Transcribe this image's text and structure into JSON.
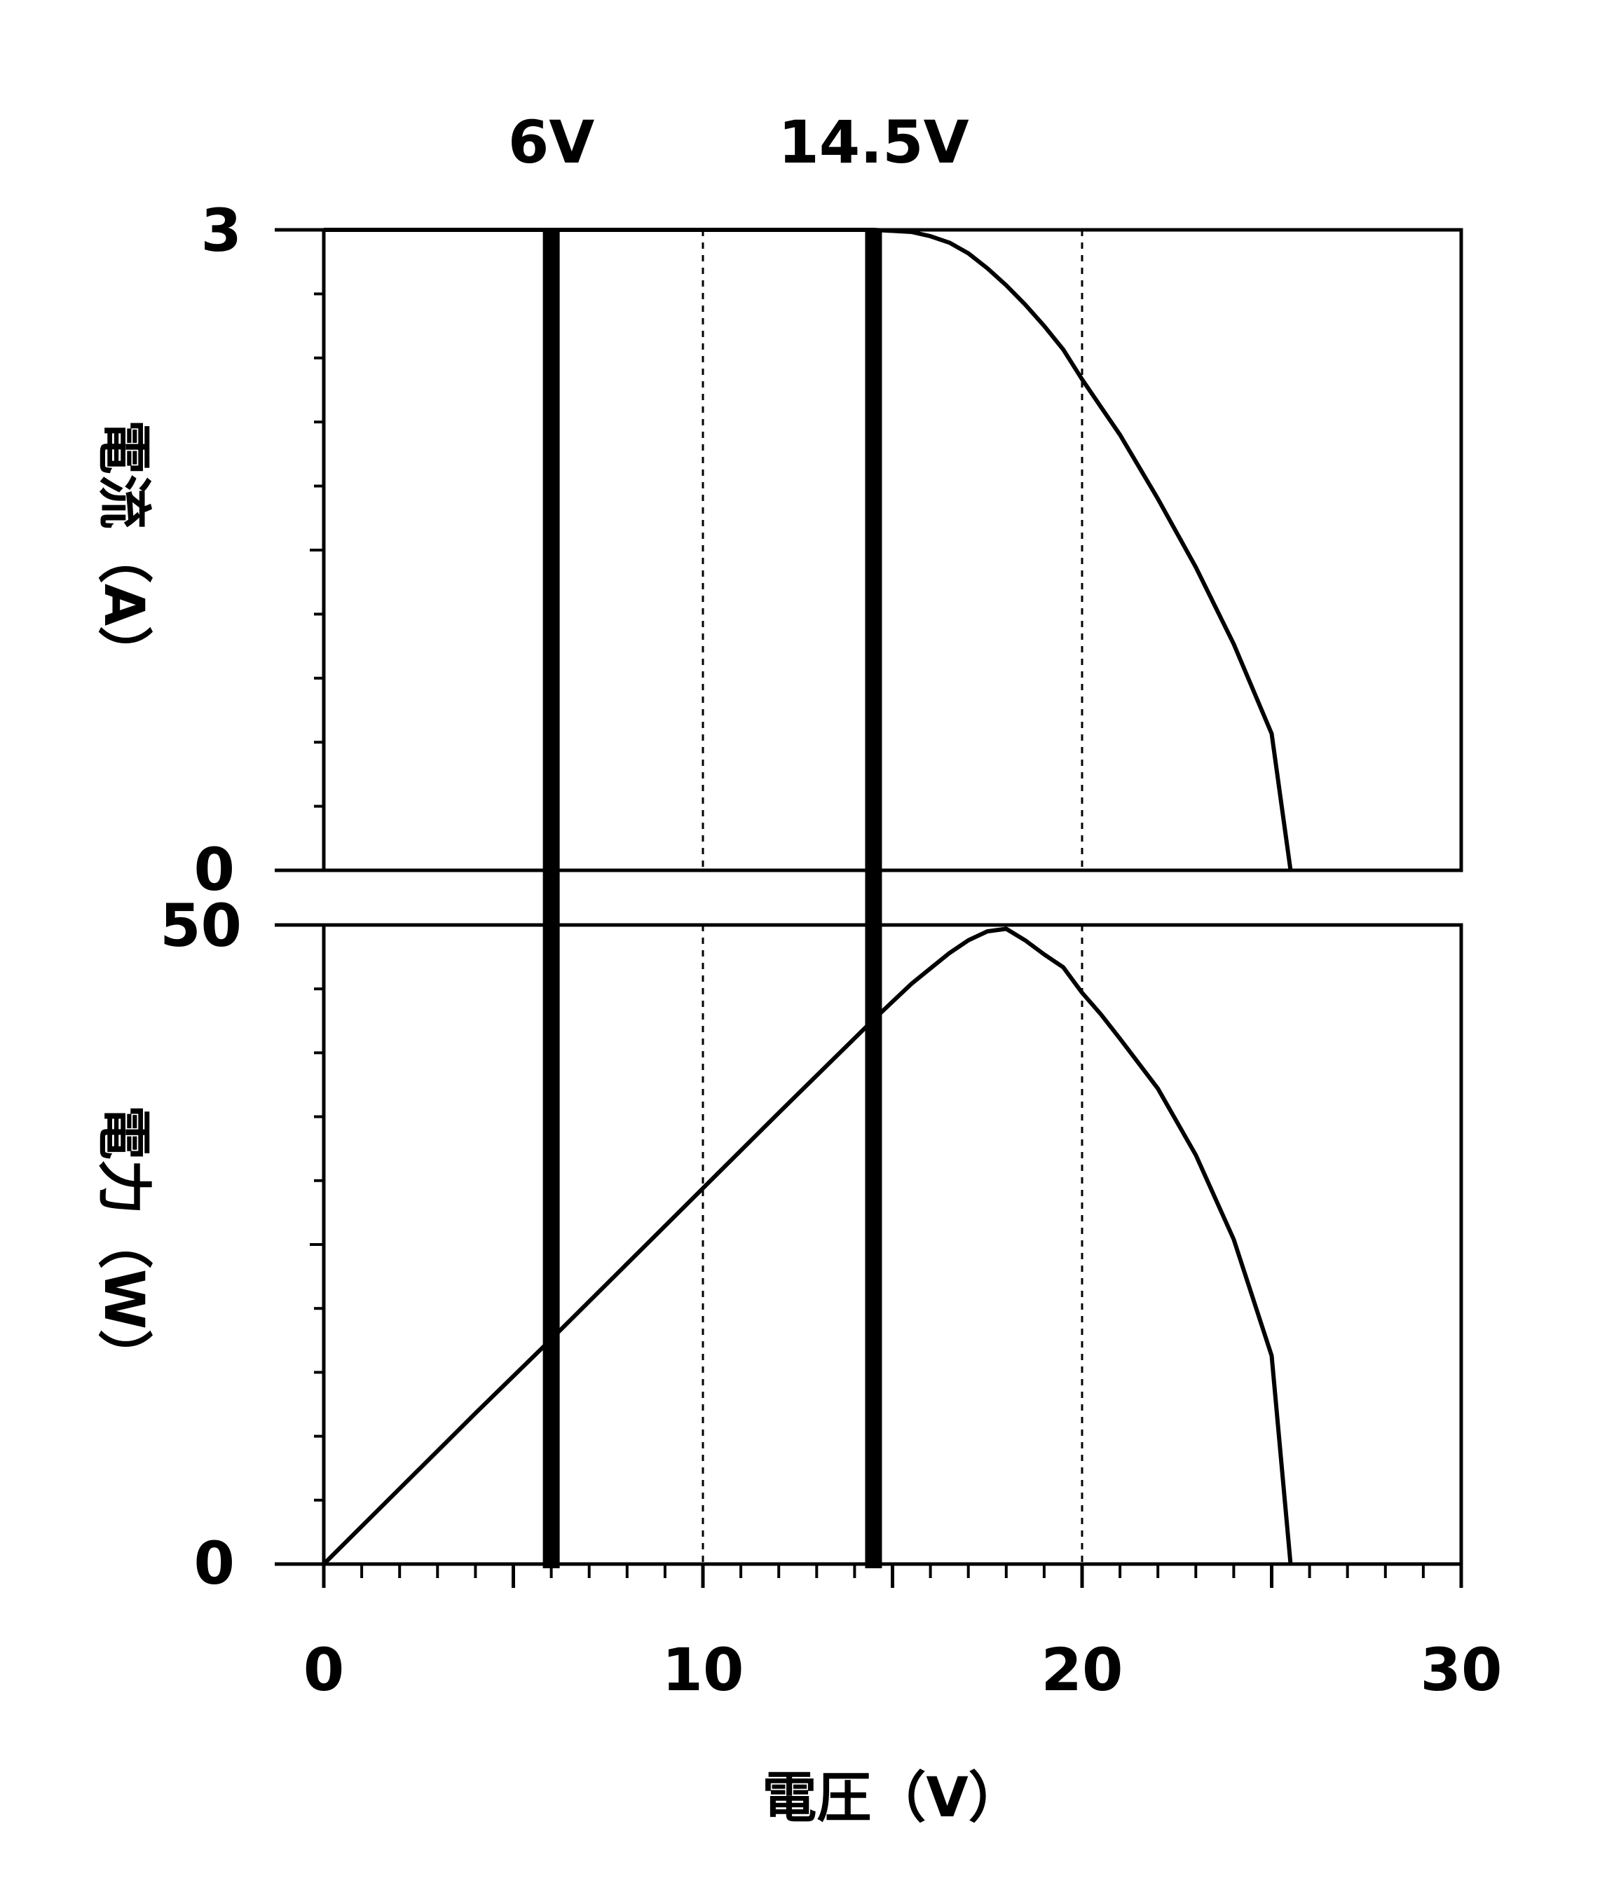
{
  "chart_data": [
    {
      "type": "line",
      "name": "current",
      "ylabel": "電流（A）",
      "ylim": [
        0,
        3
      ],
      "ytick_labels": [
        "3",
        "0"
      ],
      "xlim": [
        0,
        30
      ],
      "grid_x": [
        10,
        20
      ],
      "series": [
        {
          "x": [
            0,
            2,
            4,
            6,
            8,
            10,
            12,
            14.5,
            15.5,
            16,
            16.5,
            17,
            17.5,
            18,
            18.5,
            19,
            19.5,
            20,
            20.5,
            21,
            22,
            23,
            24,
            25,
            25.5
          ],
          "y": [
            3.0,
            3.0,
            3.0,
            3.0,
            3.0,
            3.0,
            3.0,
            3.0,
            2.99,
            2.97,
            2.94,
            2.89,
            2.82,
            2.74,
            2.65,
            2.55,
            2.44,
            2.3,
            2.17,
            2.04,
            1.74,
            1.42,
            1.06,
            0.64,
            0.0
          ]
        }
      ]
    },
    {
      "type": "line",
      "name": "power",
      "ylabel": "電力（W）",
      "xlabel": "電圧（V）",
      "ylim": [
        0,
        50
      ],
      "ytick_labels": [
        "50",
        "0"
      ],
      "xlim": [
        0,
        30
      ],
      "xtick_labels": [
        "0",
        "10",
        "20",
        "30"
      ],
      "grid_x": [
        10,
        20
      ],
      "series": [
        {
          "x": [
            0,
            2,
            4,
            6,
            8,
            10,
            12,
            14.5,
            15.5,
            16,
            16.5,
            17,
            17.5,
            18,
            18.5,
            19,
            19.5,
            20,
            20.5,
            21,
            22,
            23,
            24,
            25,
            25.5
          ],
          "y": [
            0,
            5.9,
            11.8,
            17.6,
            23.5,
            29.4,
            35.3,
            42.6,
            45.4,
            46.6,
            47.8,
            48.8,
            49.5,
            49.7,
            48.8,
            47.7,
            46.7,
            44.7,
            43.0,
            41.1,
            37.2,
            32.0,
            25.4,
            16.3,
            0
          ]
        }
      ]
    }
  ],
  "markers": [
    {
      "x": 6,
      "label": "6V"
    },
    {
      "x": 14.5,
      "label": "14.5V"
    }
  ]
}
